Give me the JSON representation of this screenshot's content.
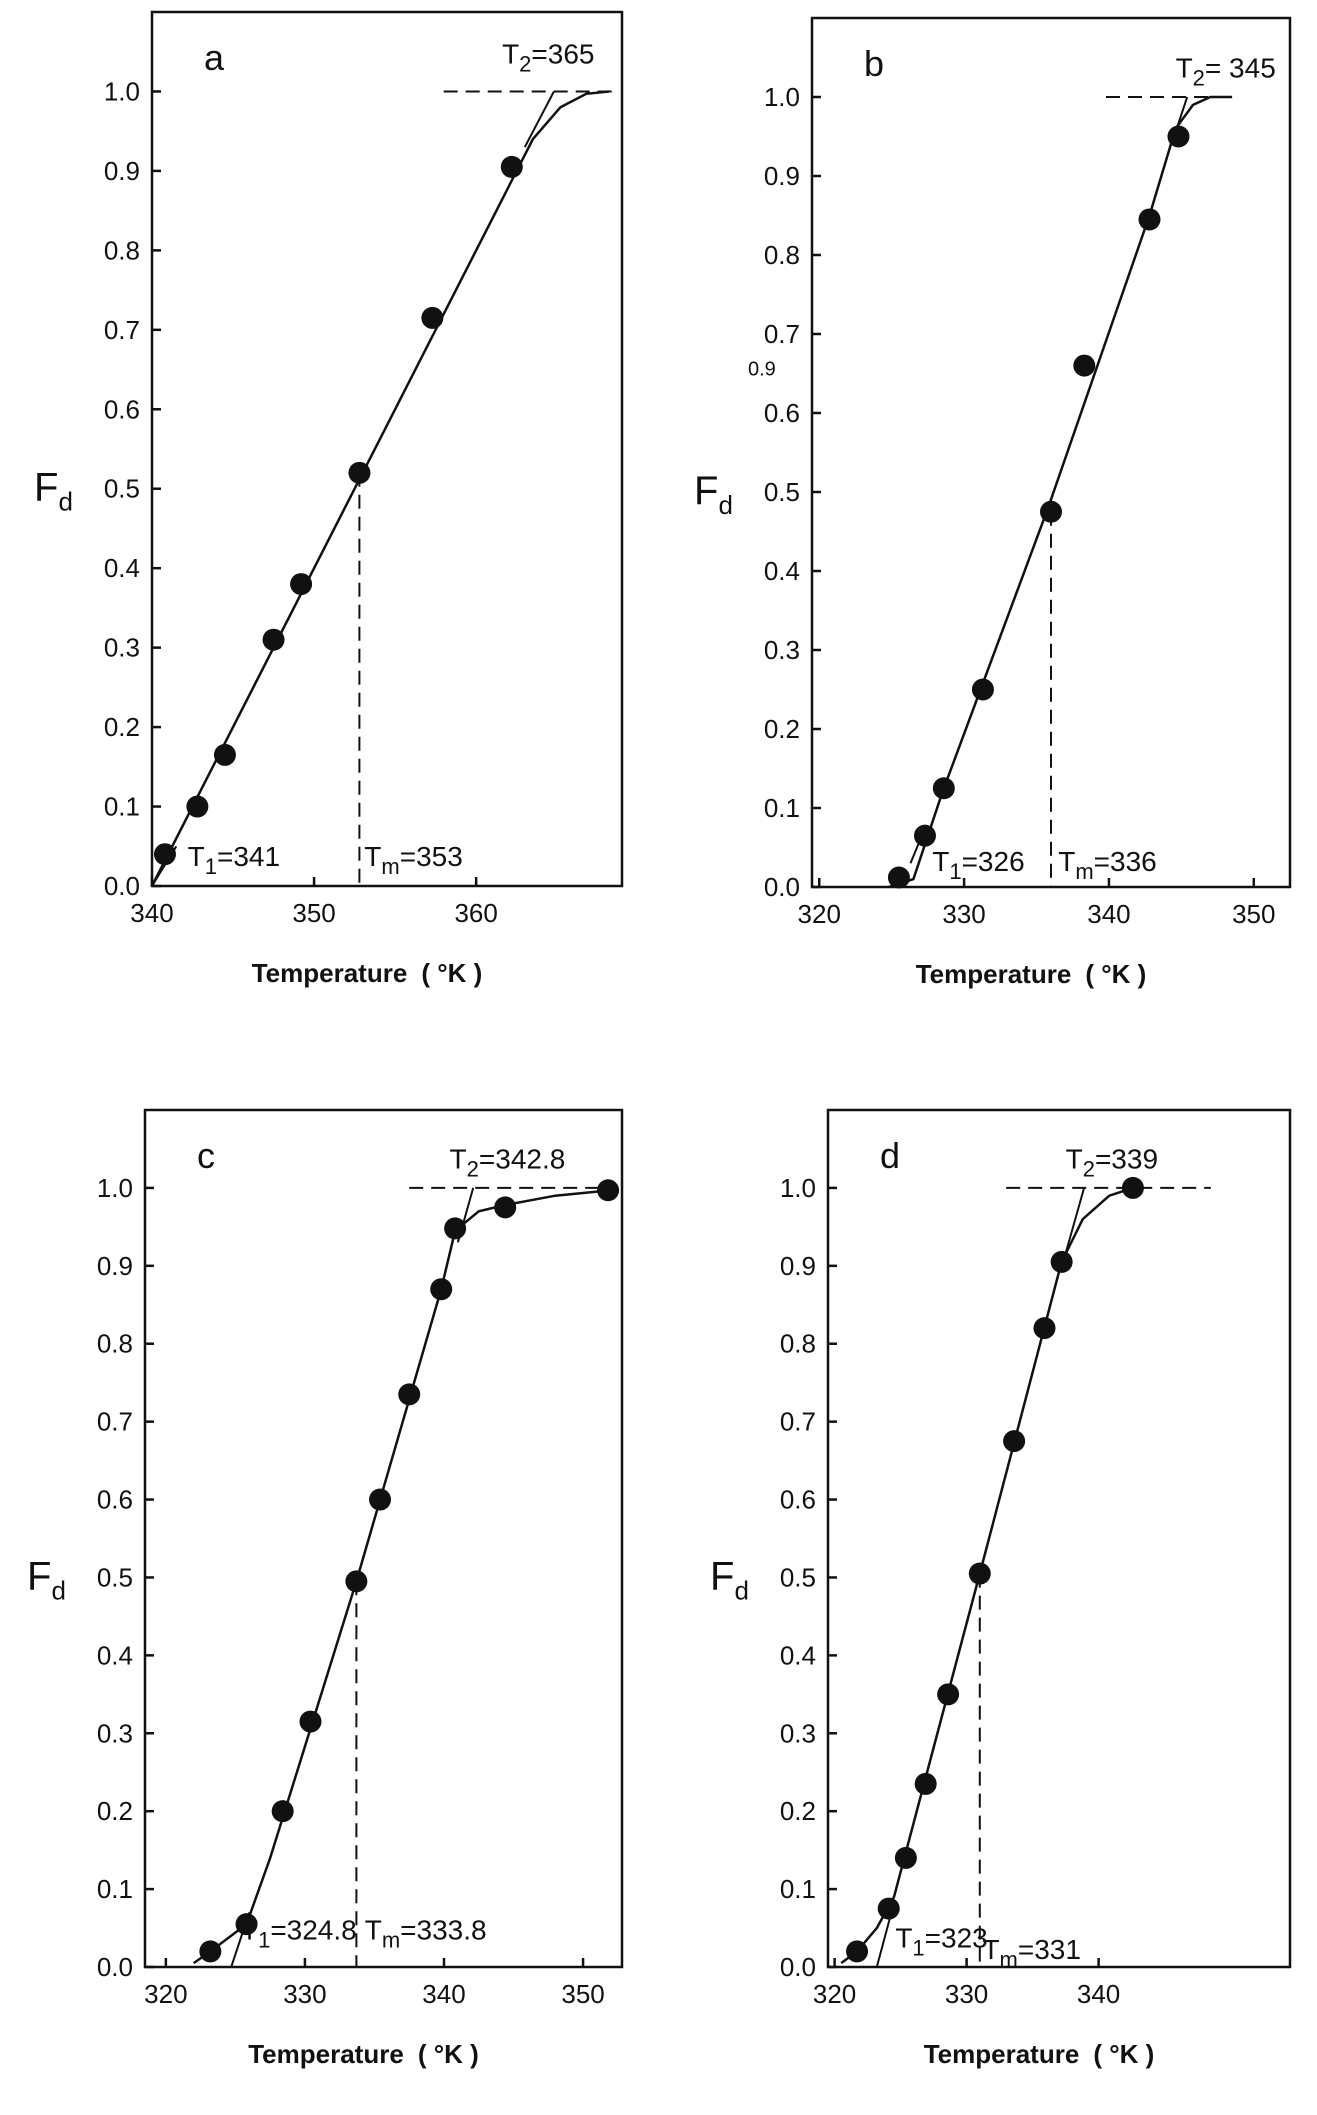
{
  "chart_data": [
    {
      "type": "scatter",
      "panel_label": "a",
      "xlabel": "Temperature",
      "xunit": "( °K )",
      "ylabel": "F",
      "ylabel_sub": "d",
      "xlim": [
        340,
        369
      ],
      "ylim": [
        0,
        1.1
      ],
      "x_ticks": [
        340,
        350,
        360
      ],
      "y_ticks": [
        "0.0",
        "0.1",
        "0.2",
        "0.3",
        "0.4",
        "0.5",
        "0.6",
        "0.7",
        "0.8",
        "0.9",
        "1.0"
      ],
      "grid": false,
      "points": [
        {
          "x": 340.8,
          "y": 0.04
        },
        {
          "x": 342.8,
          "y": 0.1
        },
        {
          "x": 344.5,
          "y": 0.165
        },
        {
          "x": 347.5,
          "y": 0.31
        },
        {
          "x": 349.2,
          "y": 0.38
        },
        {
          "x": 352.8,
          "y": 0.52
        },
        {
          "x": 357.3,
          "y": 0.715
        },
        {
          "x": 362.2,
          "y": 0.905
        }
      ],
      "fit_line": [
        [
          340.0,
          0.0
        ],
        [
          363.5,
          0.94
        ],
        [
          365.2,
          0.98
        ],
        [
          366.8,
          0.997
        ],
        [
          368.2,
          1.0
        ]
      ],
      "t1_tangent": [
        [
          340.0,
          0.0
        ],
        [
          341.5,
          0.05
        ]
      ],
      "t2_tangent": [
        [
          363.0,
          0.93
        ],
        [
          364.8,
          1.0
        ]
      ],
      "t2_dash": [
        [
          358.0,
          1.0
        ],
        [
          368.5,
          1.0
        ]
      ],
      "tm_dash": [
        [
          352.8,
          0.52
        ],
        [
          352.8,
          0.0
        ]
      ],
      "annotations": {
        "t1": {
          "label": "T",
          "sub": "1",
          "value": "=341",
          "x": 342.2,
          "y": 0.025
        },
        "tm": {
          "label": "T",
          "sub": "m",
          "value": "=353",
          "x": 353.1,
          "y": 0.025
        },
        "t2": {
          "label": "T",
          "sub": "2",
          "value": "=365",
          "x": 361.6,
          "y": 1.035
        }
      }
    },
    {
      "type": "scatter",
      "panel_label": "b",
      "xlabel": "Temperature",
      "xunit": "( °K )",
      "ylabel": "F",
      "ylabel_sub": "d",
      "stray_label": "0.9",
      "xlim": [
        319.5,
        352.5
      ],
      "ylim": [
        0,
        1.1
      ],
      "x_ticks": [
        320,
        330,
        340,
        350
      ],
      "y_ticks": [
        "0.0",
        "0.1",
        "0.2",
        "0.3",
        "0.4",
        "0.5",
        "0.6",
        "0.7",
        "0.8",
        "0.9",
        "1.0"
      ],
      "grid": false,
      "points": [
        {
          "x": 325.5,
          "y": 0.012
        },
        {
          "x": 327.3,
          "y": 0.065
        },
        {
          "x": 328.6,
          "y": 0.125
        },
        {
          "x": 331.3,
          "y": 0.25
        },
        {
          "x": 336.0,
          "y": 0.475
        },
        {
          "x": 338.3,
          "y": 0.66
        },
        {
          "x": 342.8,
          "y": 0.845
        },
        {
          "x": 344.8,
          "y": 0.95
        }
      ],
      "fit_line": [
        [
          324.8,
          0.0
        ],
        [
          326.5,
          0.01
        ],
        [
          328.5,
          0.12
        ],
        [
          335.8,
          0.48
        ],
        [
          342.8,
          0.85
        ],
        [
          344.6,
          0.96
        ],
        [
          345.8,
          0.99
        ],
        [
          347.0,
          1.0
        ],
        [
          348.5,
          1.0
        ]
      ],
      "t1_tangent": [
        [
          326.3,
          0.03
        ],
        [
          327.2,
          0.07
        ]
      ],
      "t2_tangent": [
        [
          344.5,
          0.95
        ],
        [
          345.4,
          1.0
        ]
      ],
      "t2_dash": [
        [
          339.8,
          1.0
        ],
        [
          348.0,
          1.0
        ]
      ],
      "tm_dash": [
        [
          336.0,
          0.475
        ],
        [
          336.0,
          0.0
        ]
      ],
      "annotations": {
        "t1": {
          "label": "T",
          "sub": "1",
          "value": "=326",
          "x": 327.8,
          "y": 0.02
        },
        "tm": {
          "label": "T",
          "sub": "m",
          "value": "=336",
          "x": 336.5,
          "y": 0.02
        },
        "t2": {
          "label": "T",
          "sub": "2",
          "value": "= 345",
          "x": 344.6,
          "y": 1.025
        }
      }
    },
    {
      "type": "scatter",
      "panel_label": "c",
      "xlabel": "Temperature",
      "xunit": "( °K )",
      "ylabel": "F",
      "ylabel_sub": "d",
      "xlim": [
        318.5,
        352.8
      ],
      "ylim": [
        0,
        1.1
      ],
      "x_ticks": [
        320,
        330,
        340,
        350
      ],
      "y_ticks": [
        "0.0",
        "0.1",
        "0.2",
        "0.3",
        "0.4",
        "0.5",
        "0.6",
        "0.7",
        "0.8",
        "0.9",
        "1.0"
      ],
      "grid": false,
      "points": [
        {
          "x": 323.2,
          "y": 0.02
        },
        {
          "x": 325.8,
          "y": 0.055
        },
        {
          "x": 328.4,
          "y": 0.2
        },
        {
          "x": 330.4,
          "y": 0.315
        },
        {
          "x": 333.7,
          "y": 0.495
        },
        {
          "x": 335.4,
          "y": 0.6
        },
        {
          "x": 337.5,
          "y": 0.735
        },
        {
          "x": 339.8,
          "y": 0.87
        },
        {
          "x": 340.8,
          "y": 0.948
        },
        {
          "x": 344.4,
          "y": 0.975
        },
        {
          "x": 351.8,
          "y": 0.997
        }
      ],
      "fit_line": [
        [
          322.0,
          0.005
        ],
        [
          323.2,
          0.02
        ],
        [
          325.8,
          0.055
        ],
        [
          327.5,
          0.14
        ],
        [
          333.7,
          0.495
        ],
        [
          339.8,
          0.87
        ],
        [
          340.8,
          0.945
        ],
        [
          342.5,
          0.97
        ],
        [
          344.4,
          0.978
        ],
        [
          348.0,
          0.99
        ],
        [
          352.0,
          0.997
        ]
      ],
      "t1_tangent": [
        [
          324.7,
          0.0
        ],
        [
          326.0,
          0.07
        ]
      ],
      "t2_tangent": [
        [
          341.0,
          0.93
        ],
        [
          342.1,
          1.0
        ]
      ],
      "t2_dash": [
        [
          337.5,
          1.0
        ],
        [
          352.5,
          1.0
        ]
      ],
      "tm_dash": [
        [
          333.7,
          0.495
        ],
        [
          333.7,
          0.0
        ]
      ],
      "annotations": {
        "t1": {
          "label": "T",
          "sub": "1",
          "value": "=324.8",
          "x": 325.4,
          "y": 0.035
        },
        "tm": {
          "label": "T",
          "sub": "m",
          "value": "=333.8",
          "x": 334.3,
          "y": 0.035
        },
        "t2": {
          "label": "T",
          "sub": "2",
          "value": "=342.8",
          "x": 340.4,
          "y": 1.025
        }
      }
    },
    {
      "type": "scatter",
      "panel_label": "d",
      "xlabel": "Temperature",
      "xunit": "( °K )",
      "ylabel": "F",
      "ylabel_sub": "d",
      "xlim": [
        319.5,
        354.5
      ],
      "ylim": [
        0,
        1.1
      ],
      "x_ticks": [
        320,
        330,
        340
      ],
      "y_ticks": [
        "0.0",
        "0.1",
        "0.2",
        "0.3",
        "0.4",
        "0.5",
        "0.6",
        "0.7",
        "0.8",
        "0.9",
        "1.0"
      ],
      "grid": false,
      "points": [
        {
          "x": 321.7,
          "y": 0.02
        },
        {
          "x": 324.1,
          "y": 0.075
        },
        {
          "x": 325.4,
          "y": 0.14
        },
        {
          "x": 326.9,
          "y": 0.235
        },
        {
          "x": 328.6,
          "y": 0.35
        },
        {
          "x": 331.0,
          "y": 0.505
        },
        {
          "x": 333.6,
          "y": 0.675
        },
        {
          "x": 335.9,
          "y": 0.82
        },
        {
          "x": 337.2,
          "y": 0.905
        },
        {
          "x": 342.6,
          "y": 1.0
        }
      ],
      "fit_line": [
        [
          320.5,
          0.005
        ],
        [
          321.7,
          0.02
        ],
        [
          323.2,
          0.05
        ],
        [
          324.5,
          0.09
        ],
        [
          331.0,
          0.505
        ],
        [
          337.2,
          0.905
        ],
        [
          338.8,
          0.96
        ],
        [
          340.8,
          0.99
        ],
        [
          342.6,
          1.0
        ]
      ],
      "t1_tangent": [
        [
          323.2,
          0.0
        ],
        [
          324.3,
          0.07
        ]
      ],
      "t2_tangent": [
        [
          337.4,
          0.91
        ],
        [
          338.9,
          1.0
        ]
      ],
      "t2_dash": [
        [
          333.0,
          1.0
        ],
        [
          348.5,
          1.0
        ]
      ],
      "tm_dash": [
        [
          331.0,
          0.505
        ],
        [
          331.0,
          0.0
        ]
      ],
      "annotations": {
        "t1": {
          "label": "T",
          "sub": "1",
          "value": "=323",
          "x": 324.6,
          "y": 0.025
        },
        "tm": {
          "label": "T",
          "sub": "m",
          "value": "=331",
          "x": 331.2,
          "y": 0.01
        },
        "t2": {
          "label": "T",
          "sub": "2",
          "value": "=339",
          "x": 337.5,
          "y": 1.025
        }
      }
    }
  ]
}
